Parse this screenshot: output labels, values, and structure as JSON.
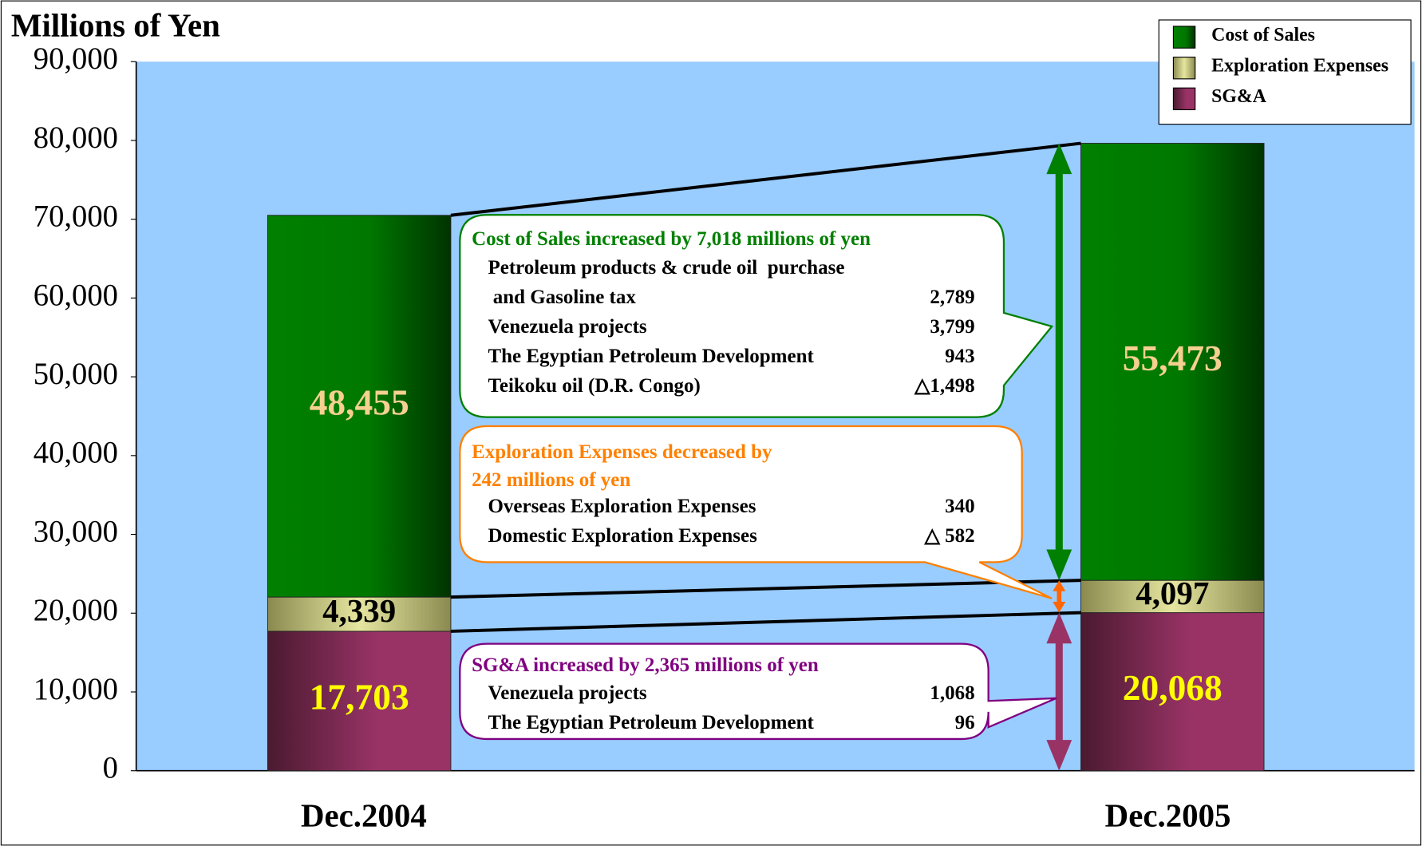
{
  "chart_data": {
    "type": "stacked_bar",
    "title": "Millions of Yen",
    "categories": [
      "Dec.2004",
      "Dec.2005"
    ],
    "series": [
      {
        "name": "SG&A",
        "color": "#993366",
        "label_color": "#ffff00",
        "values": [
          17703,
          20068
        ],
        "value_labels": [
          "17,703",
          "20,068"
        ]
      },
      {
        "name": "Exploration Expenses",
        "color": "#e6e6a0",
        "label_color": "#000000",
        "values": [
          4339,
          4097
        ],
        "value_labels": [
          "4,339",
          "4,097"
        ]
      },
      {
        "name": "Cost of Sales",
        "color": "#008000",
        "label_color": "#f5d090",
        "values": [
          48455,
          55473
        ],
        "value_labels": [
          "48,455",
          "55,473"
        ]
      }
    ],
    "ylim": [
      0,
      90000
    ],
    "yticks": [
      0,
      {
        "value": 10000,
        "label": "10,000"
      },
      {
        "value": 20000,
        "label": "20,000"
      },
      {
        "value": 30000,
        "label": "30,000"
      },
      {
        "value": 40000,
        "label": "40,000"
      },
      {
        "value": 50000,
        "label": "50,000"
      },
      {
        "value": 60000,
        "label": "60,000"
      },
      {
        "value": 70000,
        "label": "70,000"
      },
      {
        "value": 80000,
        "label": "80,000"
      },
      {
        "value": 90000,
        "label": "90,000"
      }
    ],
    "legend": "top-right",
    "legend_order": [
      2,
      1,
      0
    ],
    "annotations": [
      {
        "color": "#008000",
        "title": [
          "Cost of Sales increased by 7,018 millions of yen"
        ],
        "rows": [
          {
            "label": "Petroleum products & crude oil  purchase"
          },
          {
            "label": " and Gasoline tax",
            "value": "2,789"
          },
          {
            "label": "Venezuela projects",
            "value": "3,799"
          },
          {
            "label": "The Egyptian Petroleum Development",
            "value": "943"
          },
          {
            "label": "Teikoku oil (D.R. Congo)",
            "value": "△1,498"
          }
        ]
      },
      {
        "color": "#ff8000",
        "title": [
          "Exploration Expenses decreased by",
          "242 millions of yen"
        ],
        "rows": [
          {
            "label": "Overseas Exploration Expenses",
            "value": "340"
          },
          {
            "label": "Domestic Exploration Expenses",
            "value": "△ 582"
          }
        ]
      },
      {
        "color": "#800080",
        "title": [
          "SG&A increased by 2,365 millions of yen"
        ],
        "rows": [
          {
            "label": "Venezuela projects",
            "value": "1,068"
          },
          {
            "label": "The Egyptian Petroleum Development",
            "value": "96"
          }
        ]
      }
    ]
  }
}
